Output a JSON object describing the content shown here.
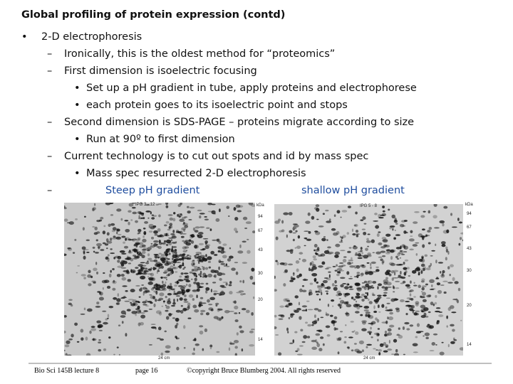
{
  "header": {
    "title": "Global profiling of protein expression (contd)"
  },
  "outline": [
    {
      "text": "2-D electrophoresis",
      "children": [
        {
          "text": "Ironically, this is the oldest method for “proteomics”"
        },
        {
          "text": "First dimension is isoelectric focusing",
          "children": [
            {
              "text": "Set up a pH gradient in tube, apply proteins and electrophorese"
            },
            {
              "text": "each protein goes to its isoelectric point and stops"
            }
          ]
        },
        {
          "text": "Second dimension is SDS-PAGE – proteins migrate according to size",
          "children": [
            {
              "text": "Run at 90º to first dimension"
            }
          ]
        },
        {
          "text": "Current technology is to cut out spots and id by mass spec",
          "children": [
            {
              "text": "Mass spec resurrected 2-D electrophoresis"
            }
          ]
        },
        {
          "captions": [
            "Steep pH gradient",
            "shallow pH gradient"
          ]
        }
      ]
    }
  ],
  "figures": [
    {
      "label": "IPG 3 - 12",
      "unit": "kDa",
      "markers": [
        94,
        67,
        43,
        30,
        20,
        14
      ],
      "width_label": "24 cm"
    },
    {
      "label": "IPG 5 - 8",
      "unit": "kDa",
      "markers": [
        94,
        67,
        43,
        30,
        20,
        14
      ],
      "width_label": "24 cm"
    }
  ],
  "footer": {
    "course": "Bio Sci 145B lecture 8",
    "page": "page 16",
    "copyright": "©copyright Bruce Blumberg 2004. All rights reserved"
  }
}
